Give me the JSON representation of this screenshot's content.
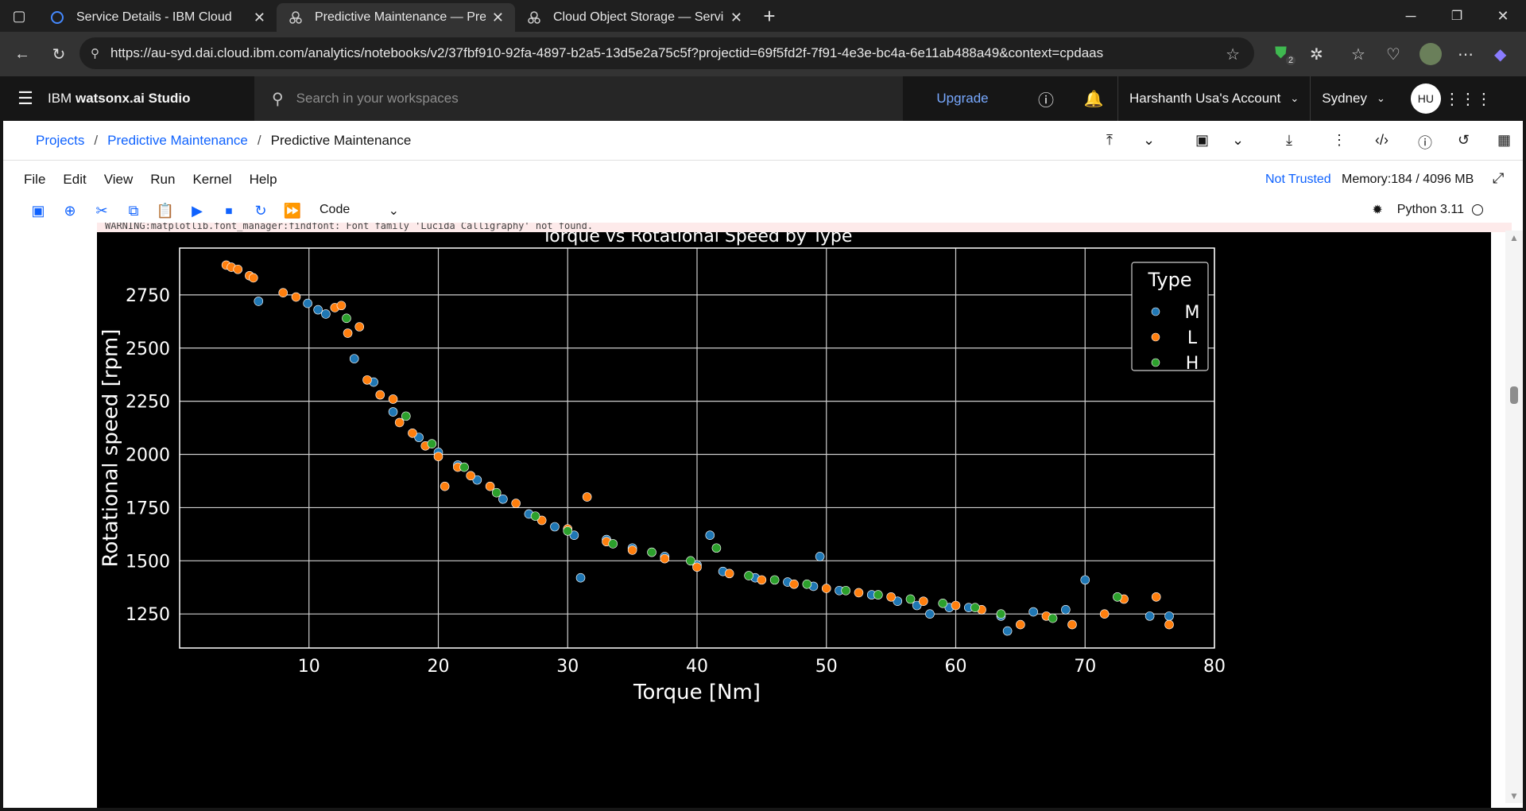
{
  "browser": {
    "tabs": [
      {
        "label": "Service Details - IBM Cloud",
        "icon": "ibm-cloud-icon",
        "active": false
      },
      {
        "label": "Predictive Maintenance — Predict",
        "icon": "watsonx-icon",
        "active": true
      },
      {
        "label": "Cloud Object Storage — Services",
        "icon": "watsonx-icon",
        "active": false
      }
    ],
    "url": "https://au-syd.dai.cloud.ibm.com/analytics/notebooks/v2/37fbf910-92fa-4897-b2a5-13d5e2a75c5f?projectid=69f5fd2f-7f91-4e3e-bc4a-6e11ab488a49&context=cpdaas",
    "extension_badge": "2"
  },
  "header": {
    "brand_prefix": "IBM",
    "brand_name": "watsonx.ai Studio",
    "search_placeholder": "Search in your workspaces",
    "upgrade_label": "Upgrade",
    "account_label": "Harshanth Usa's Account",
    "region_label": "Sydney",
    "avatar_initials": "HU"
  },
  "breadcrumb": {
    "items": [
      "Projects",
      "Predictive Maintenance",
      "Predictive Maintenance"
    ]
  },
  "notebook": {
    "menu": [
      "File",
      "Edit",
      "View",
      "Run",
      "Kernel",
      "Help"
    ],
    "trust_status": "Not Trusted",
    "memory": "Memory:184 / 4096 MB",
    "cell_type": "Code",
    "kernel": "Python 3.11",
    "warning_text": "WARNING:matplotlib.font_manager:findfont: Font family 'Lucida Calligraphy' not found."
  },
  "colors": {
    "M": "#1f77b4",
    "L": "#ff7f0e",
    "H": "#2ca02c",
    "link": "#0f62fe"
  },
  "chart_data": {
    "type": "scatter",
    "title": "Torque vs Rotational Speed by Type",
    "xlabel": "Torque [Nm]",
    "ylabel": "Rotational speed [rpm]",
    "xlim": [
      0,
      80
    ],
    "ylim": [
      1090,
      2970
    ],
    "xticks": [
      10,
      20,
      30,
      40,
      50,
      60,
      70,
      80
    ],
    "yticks": [
      1250,
      1500,
      1750,
      2000,
      2250,
      2500,
      2750
    ],
    "grid": true,
    "legend_title": "Type",
    "legend_position": "top-right",
    "series": [
      {
        "name": "M",
        "color": "#1f77b4",
        "points": [
          [
            6.1,
            2720
          ],
          [
            9.9,
            2710
          ],
          [
            10.7,
            2680
          ],
          [
            11.3,
            2660
          ],
          [
            13.5,
            2450
          ],
          [
            15.0,
            2340
          ],
          [
            16.5,
            2200
          ],
          [
            18.5,
            2080
          ],
          [
            20.0,
            2010
          ],
          [
            21.5,
            1950
          ],
          [
            23.0,
            1880
          ],
          [
            25.0,
            1790
          ],
          [
            27.0,
            1720
          ],
          [
            29.0,
            1660
          ],
          [
            30.5,
            1620
          ],
          [
            31.0,
            1420
          ],
          [
            33.0,
            1600
          ],
          [
            35.0,
            1560
          ],
          [
            37.5,
            1520
          ],
          [
            40.0,
            1480
          ],
          [
            41.0,
            1620
          ],
          [
            42.0,
            1450
          ],
          [
            44.5,
            1420
          ],
          [
            47.0,
            1400
          ],
          [
            49.0,
            1380
          ],
          [
            49.5,
            1520
          ],
          [
            51.0,
            1360
          ],
          [
            53.5,
            1340
          ],
          [
            55.5,
            1310
          ],
          [
            57.0,
            1290
          ],
          [
            58.0,
            1250
          ],
          [
            59.5,
            1280
          ],
          [
            61.0,
            1280
          ],
          [
            63.5,
            1240
          ],
          [
            64.0,
            1170
          ],
          [
            66.0,
            1260
          ],
          [
            68.5,
            1270
          ],
          [
            70.0,
            1410
          ],
          [
            75.0,
            1240
          ],
          [
            76.5,
            1240
          ]
        ]
      },
      {
        "name": "L",
        "color": "#ff7f0e",
        "points": [
          [
            3.6,
            2890
          ],
          [
            4.0,
            2880
          ],
          [
            4.5,
            2870
          ],
          [
            5.4,
            2840
          ],
          [
            5.7,
            2830
          ],
          [
            8.0,
            2760
          ],
          [
            9.0,
            2740
          ],
          [
            12.0,
            2690
          ],
          [
            12.5,
            2700
          ],
          [
            13.0,
            2570
          ],
          [
            13.9,
            2600
          ],
          [
            14.5,
            2350
          ],
          [
            15.5,
            2280
          ],
          [
            16.5,
            2260
          ],
          [
            17.0,
            2150
          ],
          [
            18.0,
            2100
          ],
          [
            19.0,
            2040
          ],
          [
            20.0,
            1990
          ],
          [
            20.5,
            1850
          ],
          [
            21.5,
            1940
          ],
          [
            22.5,
            1900
          ],
          [
            24.0,
            1850
          ],
          [
            26.0,
            1770
          ],
          [
            28.0,
            1690
          ],
          [
            30.0,
            1650
          ],
          [
            31.5,
            1800
          ],
          [
            33.0,
            1590
          ],
          [
            35.0,
            1550
          ],
          [
            37.5,
            1510
          ],
          [
            40.0,
            1470
          ],
          [
            42.5,
            1440
          ],
          [
            45.0,
            1410
          ],
          [
            47.5,
            1390
          ],
          [
            50.0,
            1370
          ],
          [
            52.5,
            1350
          ],
          [
            55.0,
            1330
          ],
          [
            57.5,
            1310
          ],
          [
            60.0,
            1290
          ],
          [
            62.0,
            1270
          ],
          [
            65.0,
            1200
          ],
          [
            67.0,
            1240
          ],
          [
            69.0,
            1200
          ],
          [
            71.5,
            1250
          ],
          [
            73.0,
            1320
          ],
          [
            75.5,
            1330
          ],
          [
            76.5,
            1200
          ]
        ]
      },
      {
        "name": "H",
        "color": "#2ca02c",
        "points": [
          [
            12.9,
            2640
          ],
          [
            17.5,
            2180
          ],
          [
            19.5,
            2050
          ],
          [
            22.0,
            1940
          ],
          [
            24.5,
            1820
          ],
          [
            27.5,
            1710
          ],
          [
            30.0,
            1640
          ],
          [
            33.5,
            1580
          ],
          [
            36.5,
            1540
          ],
          [
            39.5,
            1500
          ],
          [
            41.5,
            1560
          ],
          [
            44.0,
            1430
          ],
          [
            46.0,
            1410
          ],
          [
            48.5,
            1390
          ],
          [
            51.5,
            1360
          ],
          [
            54.0,
            1340
          ],
          [
            56.5,
            1320
          ],
          [
            59.0,
            1300
          ],
          [
            61.5,
            1280
          ],
          [
            63.5,
            1250
          ],
          [
            67.5,
            1230
          ],
          [
            72.5,
            1330
          ]
        ]
      }
    ]
  }
}
